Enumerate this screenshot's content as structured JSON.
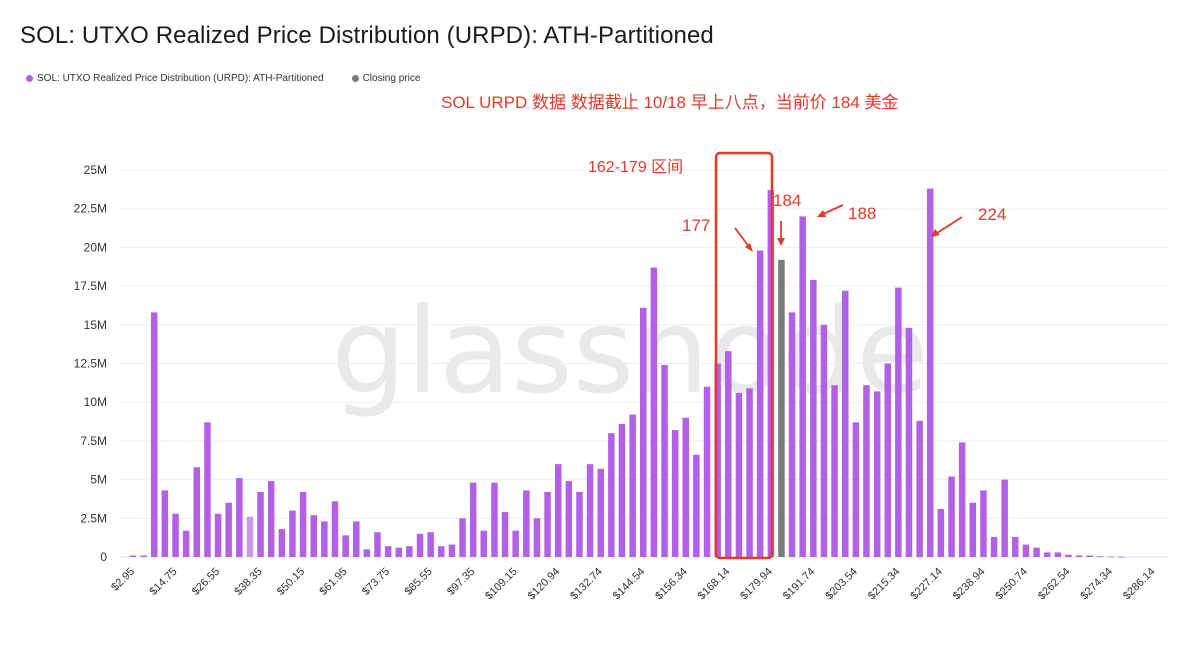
{
  "header": {
    "title": "SOL: UTXO Realized Price Distribution (URPD): ATH-Partitioned"
  },
  "legend": [
    {
      "label": "SOL: UTXO Realized Price Distribution (URPD): ATH-Partitioned",
      "color": "#b260e6"
    },
    {
      "label": "Closing price",
      "color": "#7a7a7a"
    }
  ],
  "annotations": {
    "subtitle": "SOL URPD 数据 数据截止 10/18 早上八点，当前价 184 美金",
    "range_label": "162-179 区间",
    "label_177": "177",
    "label_184": "184",
    "label_188": "188",
    "label_224": "224",
    "color": "#e03c2a"
  },
  "watermark": "glassnode",
  "chart_data": {
    "type": "bar",
    "title": "SOL: UTXO Realized Price Distribution (URPD): ATH-Partitioned",
    "xlabel": "",
    "ylabel": "",
    "ylim": [
      0,
      25000000
    ],
    "yticks": [
      "0",
      "2.5M",
      "5M",
      "7.5M",
      "10M",
      "12.5M",
      "15M",
      "17.5M",
      "20M",
      "22.5M",
      "25M"
    ],
    "xtick_labels": [
      "$2.95",
      "$14.75",
      "$26.55",
      "$38.35",
      "$50.15",
      "$61.95",
      "$73.75",
      "$85.55",
      "$97.35",
      "$109.15",
      "$120.94",
      "$132.74",
      "$144.54",
      "$156.34",
      "$168.14",
      "$179.94",
      "$191.74",
      "$203.54",
      "$215.34",
      "$227.14",
      "$238.94",
      "$250.74",
      "$262.54",
      "$274.34",
      "$286.14"
    ],
    "grid": true,
    "legend_position": "top-left",
    "closing_price_index": 61,
    "highlight_index": 11,
    "series": [
      {
        "name": "SOL: UTXO Realized Price Distribution (URPD): ATH-Partitioned",
        "unit": "M SOL",
        "values": [
          0.1,
          0.1,
          15.8,
          4.3,
          2.8,
          1.7,
          5.8,
          8.7,
          2.8,
          3.5,
          5.1,
          2.6,
          4.2,
          4.9,
          1.8,
          3.0,
          4.2,
          2.7,
          2.3,
          3.6,
          1.4,
          2.3,
          0.5,
          1.6,
          0.7,
          0.6,
          0.7,
          1.5,
          1.6,
          0.7,
          0.8,
          2.5,
          4.8,
          1.7,
          4.8,
          2.9,
          1.7,
          4.3,
          2.5,
          4.2,
          6.0,
          4.9,
          4.2,
          6.0,
          5.7,
          8.0,
          8.6,
          9.2,
          16.1,
          18.7,
          12.4,
          8.2,
          9.0,
          6.6,
          11.0,
          12.5,
          13.3,
          10.6,
          10.9,
          19.8,
          23.7,
          19.2,
          15.8,
          22.0,
          17.9,
          15.0,
          11.1,
          17.2,
          8.7,
          11.1,
          10.7,
          12.5,
          17.4,
          14.8,
          8.8,
          23.8,
          3.1,
          5.2,
          7.4,
          3.5,
          4.3,
          1.3,
          5.0,
          1.3,
          0.8,
          0.6,
          0.3,
          0.3,
          0.15,
          0.1,
          0.1,
          0.05,
          0.03,
          0.02
        ]
      }
    ],
    "colors": {
      "bar": "#b260e6",
      "bar_faded": "#c99ae8",
      "closing": "#7a7a7a",
      "grid": "#eeeeee"
    }
  }
}
